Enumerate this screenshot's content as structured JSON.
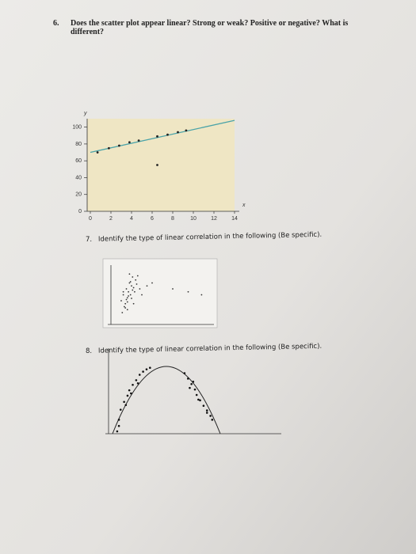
{
  "questions": [
    {
      "number": "6.",
      "lines": [
        "Does the scatter plot appear linear? Strong or weak? Positive or negative? What is",
        "different?"
      ]
    },
    {
      "number": "7.",
      "lines": [
        "Identify the type of linear correlation in the following (Be specific)."
      ]
    },
    {
      "number": "8.",
      "lines": [
        "Identify the type of linear correlation in the following (Be specific)."
      ]
    }
  ],
  "chart_data": [
    {
      "type": "scatter",
      "x_label": "x",
      "y_label": "y",
      "background": "#efe6c4",
      "color": "#222222",
      "x": [
        0.7,
        1.8,
        2.8,
        3.8,
        4.7,
        6.5,
        7.5,
        8.5,
        9.3,
        6.5
      ],
      "y": [
        70,
        75,
        78,
        82,
        84,
        89,
        91,
        94,
        96,
        55
      ],
      "fit": {
        "x": [
          0,
          14
        ],
        "y": [
          70,
          108
        ],
        "color": "#4aa3a8"
      },
      "xlim": [
        0,
        14
      ],
      "ylim": [
        0,
        110
      ],
      "xticks": [
        0,
        2,
        4,
        6,
        8,
        10,
        12,
        14
      ],
      "yticks": [
        0,
        20,
        40,
        60,
        80,
        100
      ]
    },
    {
      "type": "scatter",
      "color": "#333333",
      "x": [
        10,
        12,
        14,
        15,
        16,
        17,
        18,
        19,
        20,
        21,
        22,
        13,
        15,
        17,
        19,
        21,
        23,
        25,
        11,
        14,
        16,
        18,
        20,
        24,
        28,
        30,
        35,
        12,
        16,
        22,
        26,
        40,
        60,
        75,
        88
      ],
      "y": [
        40,
        50,
        35,
        60,
        45,
        55,
        70,
        50,
        65,
        58,
        62,
        30,
        42,
        48,
        72,
        80,
        55,
        68,
        20,
        28,
        38,
        85,
        44,
        75,
        60,
        50,
        65,
        55,
        25,
        35,
        82,
        70,
        60,
        55,
        50
      ],
      "xlim": [
        0,
        100
      ],
      "ylim": [
        0,
        100
      ]
    },
    {
      "type": "scatter",
      "color": "#111111",
      "x": [
        5,
        6,
        7,
        9,
        11,
        12,
        14,
        16,
        18,
        20,
        22,
        24,
        6,
        10,
        13,
        17,
        44,
        46,
        48,
        50,
        51,
        53,
        55,
        57,
        59,
        60,
        47,
        52,
        57,
        49
      ],
      "y": [
        3,
        18,
        31,
        41,
        49,
        56,
        63,
        69,
        76,
        80,
        83,
        85,
        10,
        37,
        52,
        65,
        78,
        71,
        64,
        57,
        50,
        43,
        36,
        30,
        23,
        18,
        59,
        44,
        27,
        67
      ],
      "xlim": [
        0,
        100
      ],
      "ylim": [
        0,
        100
      ]
    }
  ]
}
